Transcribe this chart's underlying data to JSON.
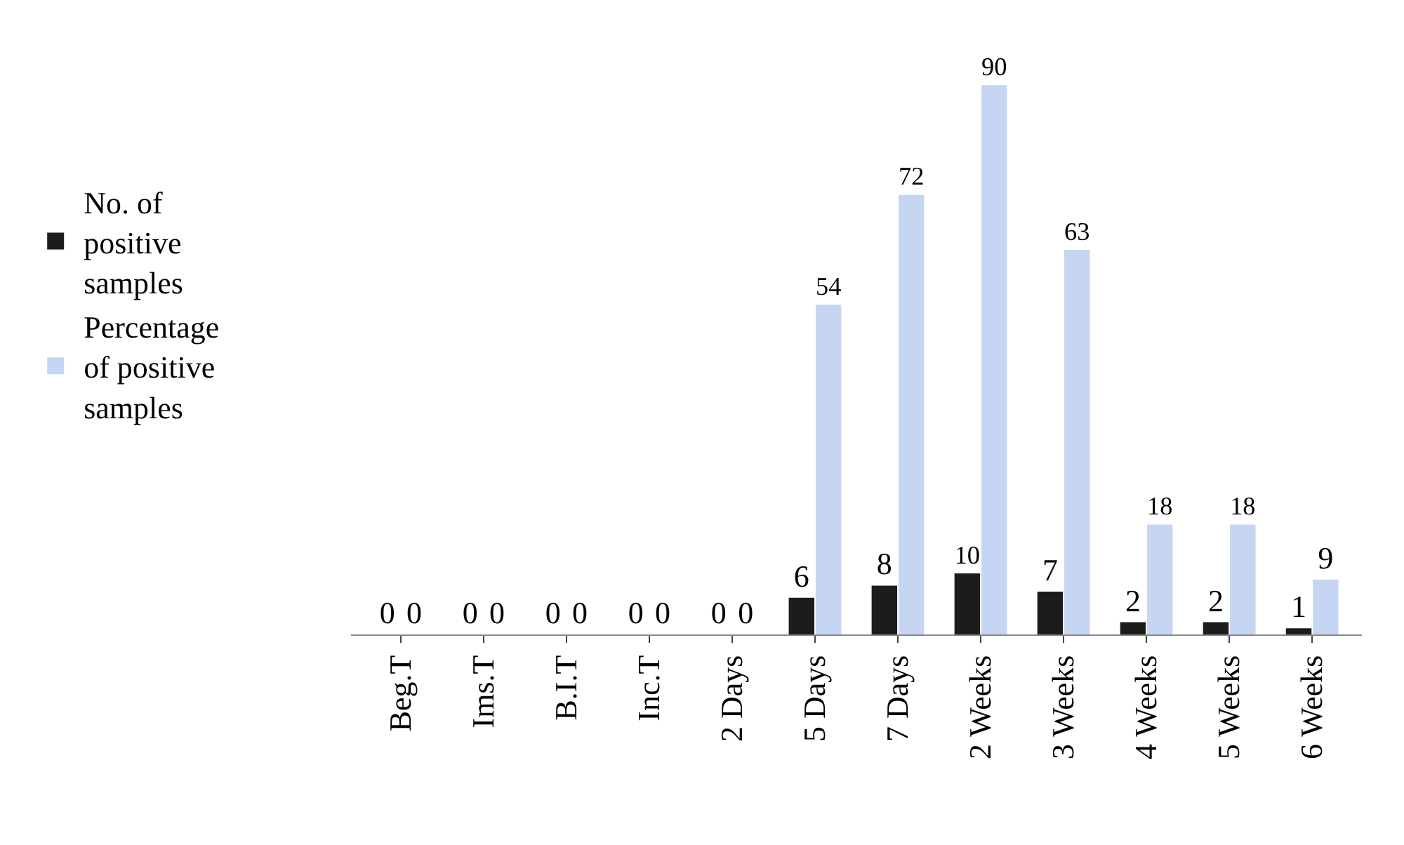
{
  "chart_data": {
    "type": "bar",
    "categories": [
      "Beg.T",
      "Ims.T",
      "B.I.T",
      "Inc.T",
      "2 Days",
      "5 Days",
      "7 Days",
      "2 Weeks",
      "3 Weeks",
      "4 Weeks",
      "5 Weeks",
      "6 Weeks"
    ],
    "series": [
      {
        "name": "No. of positive samples",
        "color": "#1c1c1c",
        "values": [
          0,
          0,
          0,
          0,
          0,
          6,
          8,
          10,
          7,
          2,
          2,
          1
        ]
      },
      {
        "name": "Percentage of positive samples",
        "color": "#c6d6f2",
        "values": [
          0,
          0,
          0,
          0,
          0,
          54,
          72,
          90,
          63,
          18,
          18,
          9
        ]
      }
    ],
    "data_labels": true,
    "legend": "left"
  }
}
